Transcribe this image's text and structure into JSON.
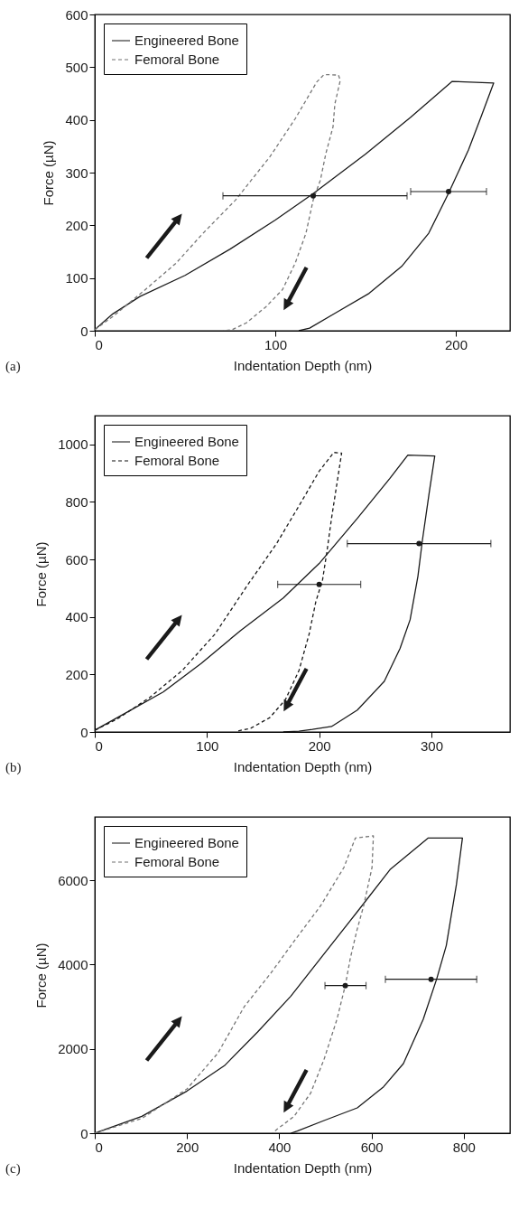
{
  "chart_data": [
    {
      "type": "line",
      "xlabel": "Indentation Depth (nm)",
      "ylabel": "Force (µN)",
      "xlim": [
        0,
        230
      ],
      "ylim": [
        0,
        600
      ],
      "xticks": [
        0,
        100,
        200
      ],
      "yticks": [
        0,
        100,
        200,
        300,
        400,
        500,
        600
      ],
      "legend": "top left",
      "grid": false,
      "annotations": [
        "(a)"
      ],
      "series": [
        {
          "name": "Engineered Bone",
          "color": "#1a1a1a",
          "line_style": "solid",
          "x": [
            0,
            10,
            25,
            50,
            75,
            100,
            121,
            150,
            175,
            198,
            221,
            214,
            207,
            196,
            185,
            170,
            152,
            133,
            119,
            113
          ],
          "values": [
            2,
            32,
            65,
            105,
            155,
            210,
            260,
            335,
            405,
            473,
            470,
            406,
            343,
            261,
            185,
            122,
            71,
            33,
            5,
            0
          ]
        },
        {
          "name": "Femoral Bone",
          "color": "#777777",
          "line_style": "dashed",
          "x": [
            0,
            10,
            28,
            45,
            60,
            78,
            97,
            111,
            123,
            127,
            135,
            136,
            133,
            132,
            128,
            125,
            121,
            117,
            111,
            104,
            95,
            84,
            76,
            71
          ],
          "values": [
            2,
            27,
            78,
            128,
            185,
            248,
            330,
            402,
            472,
            486,
            485,
            475,
            430,
            387,
            336,
            286,
            248,
            185,
            128,
            78,
            46,
            15,
            2,
            0
          ]
        },
        {
          "type": "scatter",
          "marker": "circle",
          "color": "#1a1a1a",
          "x": [
            121
          ],
          "values": [
            256
          ],
          "xerrors": [
            [
              71,
              173
            ]
          ]
        },
        {
          "type": "scatter",
          "marker": "circle",
          "color": "#1a1a1a",
          "x": [
            196
          ],
          "values": [
            264
          ],
          "xerrors": [
            [
              175,
              217
            ]
          ]
        }
      ]
    },
    {
      "type": "line",
      "xlabel": "Indentation Depth (nm)",
      "ylabel": "Force (µN)",
      "xlim": [
        0,
        370
      ],
      "ylim": [
        0,
        1100
      ],
      "xticks": [
        0,
        100,
        200,
        300
      ],
      "yticks": [
        0,
        200,
        400,
        600,
        800,
        1000
      ],
      "legend": "top left",
      "grid": false,
      "annotations": [
        "(b)"
      ],
      "series": [
        {
          "name": "Engineered Bone",
          "color": "#1a1a1a",
          "line_style": "solid",
          "x": [
            0,
            32,
            61,
            95,
            130,
            168,
            200,
            234,
            263,
            279,
            303,
            298,
            292,
            288,
            281,
            272,
            258,
            234,
            211,
            194,
            182,
            168
          ],
          "values": [
            6,
            76,
            139,
            239,
            353,
            466,
            586,
            743,
            882,
            963,
            960,
            831,
            667,
            542,
            390,
            290,
            176,
            76,
            19,
            9,
            3,
            0
          ]
        },
        {
          "name": "Femoral Bone",
          "color": "#1a1a1a",
          "line_style": "dashed",
          "x": [
            0,
            20,
            49,
            78,
            107,
            136,
            162,
            183,
            200,
            213,
            220,
            217,
            211,
            207,
            203,
            197,
            191,
            182,
            170,
            156,
            139,
            127
          ],
          "values": [
            6,
            45,
            120,
            214,
            340,
            510,
            655,
            793,
            907,
            972,
            970,
            894,
            743,
            630,
            529,
            453,
            340,
            214,
            113,
            50,
            13,
            3
          ]
        },
        {
          "type": "scatter",
          "marker": "circle",
          "color": "#1a1a1a",
          "x": [
            200
          ],
          "values": [
            513
          ],
          "xerrors": [
            [
              163,
              237
            ]
          ]
        },
        {
          "type": "scatter",
          "marker": "circle",
          "color": "#1a1a1a",
          "x": [
            289
          ],
          "values": [
            655
          ],
          "xerrors": [
            [
              225,
              353
            ]
          ]
        }
      ]
    },
    {
      "type": "line",
      "xlabel": "Indentation Depth (nm)",
      "ylabel": "Force (µN)",
      "xlim": [
        0,
        900
      ],
      "ylim": [
        0,
        7500
      ],
      "xticks": [
        0,
        200,
        400,
        600,
        800
      ],
      "yticks": [
        0,
        2000,
        4000,
        6000
      ],
      "legend": "top left",
      "grid": false,
      "annotations": [
        "(c)"
      ],
      "series": [
        {
          "name": "Engineered Bone",
          "color": "#1a1a1a",
          "line_style": "solid",
          "x": [
            0,
            102,
            200,
            281,
            353,
            425,
            497,
            569,
            640,
            723,
            797,
            784,
            762,
            741,
            712,
            669,
            626,
            569,
            497,
            439,
            425
          ],
          "values": [
            0,
            400,
            1000,
            1600,
            2400,
            3250,
            4250,
            5250,
            6250,
            7000,
            7000,
            5900,
            4450,
            3650,
            2700,
            1650,
            1100,
            600,
            300,
            50,
            0
          ]
        },
        {
          "name": "Femoral Bone",
          "color": "#777777",
          "line_style": "dashed",
          "x": [
            0,
            102,
            200,
            267,
            324,
            382,
            432,
            490,
            540,
            565,
            604,
            601,
            583,
            568,
            554,
            543,
            525,
            497,
            468,
            432,
            396,
            385
          ],
          "values": [
            0,
            350,
            1050,
            1900,
            3000,
            3800,
            4550,
            5400,
            6300,
            7000,
            7050,
            6300,
            5400,
            4800,
            4150,
            3500,
            2700,
            1750,
            950,
            400,
            100,
            0
          ]
        },
        {
          "type": "scatter",
          "marker": "circle",
          "color": "#1a1a1a",
          "x": [
            543
          ],
          "values": [
            3500
          ],
          "xerrors": [
            [
              499,
              588
            ]
          ]
        },
        {
          "type": "scatter",
          "marker": "circle",
          "color": "#1a1a1a",
          "x": [
            729
          ],
          "values": [
            3650
          ],
          "xerrors": [
            [
              630,
              828
            ]
          ]
        }
      ]
    }
  ]
}
